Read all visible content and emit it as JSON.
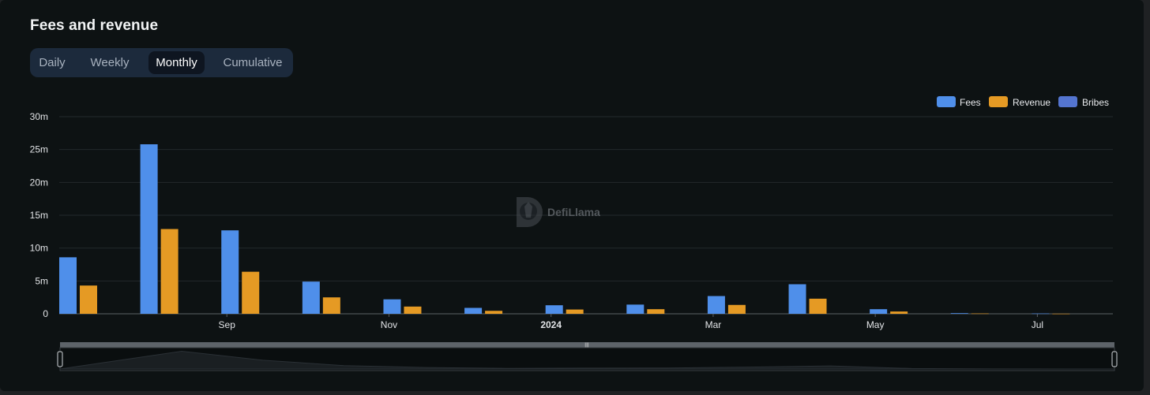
{
  "title": "Fees and revenue",
  "tabs": [
    {
      "label": "Daily",
      "active": false
    },
    {
      "label": "Weekly",
      "active": false
    },
    {
      "label": "Monthly",
      "active": true
    },
    {
      "label": "Cumulative",
      "active": false
    }
  ],
  "watermark": "DefiLlama",
  "colors": {
    "fees": "#4f8fea",
    "revenue": "#e59a24",
    "bribes": "#5475d0",
    "grid": "#23292c",
    "panel": "#0d1213"
  },
  "chart_data": {
    "type": "bar",
    "categories": [
      "2023-07",
      "2023-08",
      "2023-09",
      "2023-10",
      "2023-11",
      "2023-12",
      "2024-01",
      "2024-02",
      "2024-03",
      "2024-04",
      "2024-05",
      "2024-06",
      "2024-07"
    ],
    "series": [
      {
        "name": "Fees",
        "values": [
          8.6,
          25.8,
          12.7,
          4.9,
          2.2,
          0.9,
          1.3,
          1.4,
          2.7,
          4.5,
          0.7,
          0.1,
          0.05
        ]
      },
      {
        "name": "Revenue",
        "values": [
          4.3,
          12.9,
          6.4,
          2.5,
          1.1,
          0.45,
          0.65,
          0.7,
          1.35,
          2.3,
          0.35,
          0.05,
          0.02
        ]
      },
      {
        "name": "Bribes",
        "values": [
          0,
          0,
          0,
          0,
          0,
          0,
          0,
          0,
          0,
          0,
          0,
          0,
          0
        ]
      }
    ],
    "x_tick_labels": [
      "Sep",
      "Nov",
      "2024",
      "Mar",
      "May",
      "Jul"
    ],
    "y_tick_labels": [
      "0",
      "5m",
      "10m",
      "15m",
      "20m",
      "25m",
      "30m"
    ],
    "yunit": "m",
    "ylim": [
      0,
      30
    ],
    "legend_position": "top-right",
    "grid": true
  }
}
